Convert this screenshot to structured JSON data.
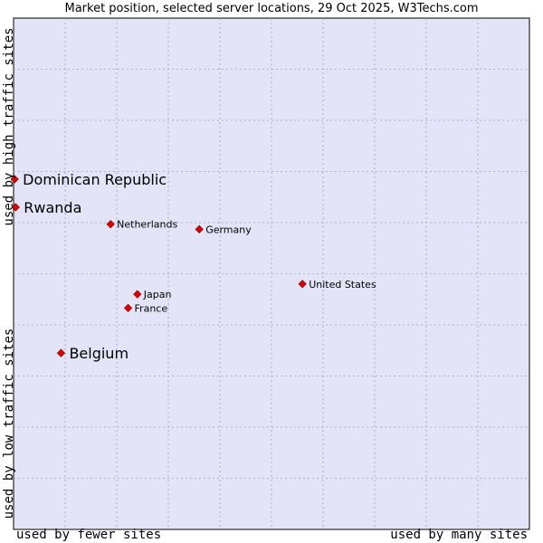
{
  "chart_data": {
    "type": "scatter",
    "title": "Market position, selected server locations, 29 Oct 2025, W3Techs.com",
    "xlabel_left": "used by fewer sites",
    "xlabel_right": "used by many sites",
    "ylabel_top": "used by high traffic sites",
    "ylabel_bottom": "used by low traffic sites",
    "xlim": [
      0,
      10
    ],
    "ylim": [
      0,
      10
    ],
    "grid": true,
    "points": [
      {
        "label": "Dominican Republic",
        "x": 0.02,
        "y": 6.85,
        "emphasis": true
      },
      {
        "label": "Rwanda",
        "x": 0.04,
        "y": 6.3,
        "emphasis": true
      },
      {
        "label": "Netherlands",
        "x": 1.88,
        "y": 5.97,
        "emphasis": false
      },
      {
        "label": "Germany",
        "x": 3.6,
        "y": 5.87,
        "emphasis": false
      },
      {
        "label": "United States",
        "x": 5.6,
        "y": 4.8,
        "emphasis": false
      },
      {
        "label": "Japan",
        "x": 2.4,
        "y": 4.6,
        "emphasis": false
      },
      {
        "label": "France",
        "x": 2.22,
        "y": 4.33,
        "emphasis": false
      },
      {
        "label": "Belgium",
        "x": 0.92,
        "y": 3.45,
        "emphasis": true
      }
    ]
  },
  "colors": {
    "plot_background": "#e4e4f8",
    "grid": "#a0a0b8",
    "point": "#e00000",
    "point_edge": "#800000",
    "text": "#000000"
  }
}
